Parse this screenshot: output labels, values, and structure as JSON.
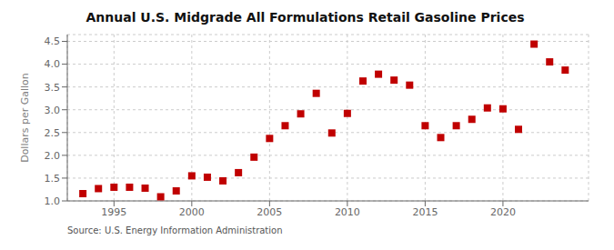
{
  "chart_data": {
    "type": "scatter",
    "title": "Annual U.S. Midgrade All Formulations Retail Gasoline Prices",
    "ylabel": "Dollars per Gallon",
    "annotations": [
      "Source: U.S. Energy Information Administration"
    ],
    "x": [
      1993,
      1994,
      1995,
      1996,
      1997,
      1998,
      1999,
      2000,
      2001,
      2002,
      2003,
      2004,
      2005,
      2006,
      2007,
      2008,
      2009,
      2010,
      2011,
      2012,
      2013,
      2014,
      2015,
      2016,
      2017,
      2018,
      2019,
      2020,
      2021,
      2022,
      2023,
      2024
    ],
    "values": [
      1.16,
      1.27,
      1.3,
      1.3,
      1.28,
      1.09,
      1.22,
      1.55,
      1.52,
      1.44,
      1.62,
      1.96,
      2.37,
      2.65,
      2.91,
      3.36,
      2.49,
      2.92,
      3.63,
      3.78,
      3.65,
      3.54,
      2.65,
      2.39,
      2.65,
      2.79,
      3.04,
      3.02,
      2.57,
      4.44,
      4.05,
      3.87
    ],
    "color": "#c00000",
    "marker": "square",
    "xlim": [
      1992.0,
      2025.5
    ],
    "ylim": [
      1.0,
      4.65
    ],
    "xticks": [
      1995,
      2000,
      2005,
      2010,
      2015,
      2020
    ],
    "yticks": [
      {
        "value": 1.0,
        "label": "1.0"
      },
      {
        "value": 1.5,
        "label": "1.5"
      },
      {
        "value": 2.0,
        "label": "2.0"
      },
      {
        "value": 2.5,
        "label": "2.5"
      },
      {
        "value": 3.0,
        "label": "3.0"
      },
      {
        "value": 3.5,
        "label": "3.5"
      },
      {
        "value": 4.0,
        "label": "4.0"
      },
      {
        "value": 4.5,
        "label": "4.5"
      }
    ],
    "grid": true
  }
}
